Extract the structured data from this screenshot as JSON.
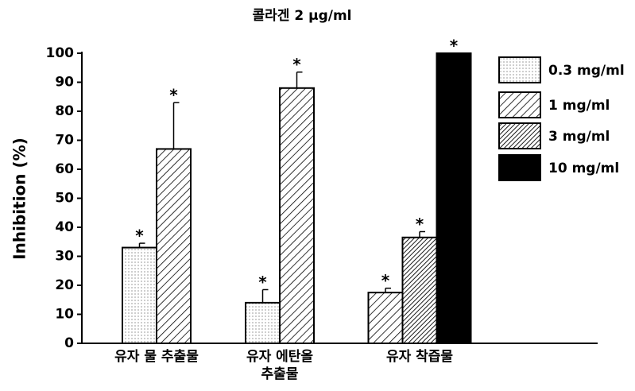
{
  "chart_data": {
    "type": "bar",
    "title": "콜라겐 2 μg/ml",
    "y_label": "Inhibition (%)",
    "categories": [
      "유자 물 추출물",
      "유자 에탄올\n추출물",
      "유자 착즙물"
    ],
    "series": [
      {
        "name": "0.3 mg/ml",
        "color": "#000000",
        "pattern": "dots",
        "values": [
          33,
          14,
          null
        ],
        "errors": [
          1.5,
          4.5,
          null
        ],
        "value_labels": [
          "*",
          "*",
          null
        ]
      },
      {
        "name": "1 mg/ml",
        "color": "#000000",
        "pattern": "hatch",
        "values": [
          67,
          88,
          17.5
        ],
        "errors": [
          16,
          5.5,
          1.5
        ],
        "value_labels": [
          "*",
          "*",
          "*"
        ]
      },
      {
        "name": "3 mg/ml",
        "color": "#000000",
        "pattern": "dense-hatch",
        "values": [
          null,
          null,
          36.5
        ],
        "errors": [
          null,
          null,
          2
        ],
        "value_labels": [
          null,
          null,
          "*"
        ]
      },
      {
        "name": "10 mg/ml",
        "color": "#000000",
        "pattern": "solid",
        "values": [
          null,
          null,
          100
        ],
        "errors": [
          null,
          null,
          null
        ],
        "value_labels": [
          null,
          null,
          "*"
        ]
      }
    ],
    "ylim": [
      0,
      100
    ],
    "yticks": [
      0,
      10,
      20,
      30,
      40,
      50,
      60,
      70,
      80,
      90,
      100
    ],
    "grid": false
  }
}
